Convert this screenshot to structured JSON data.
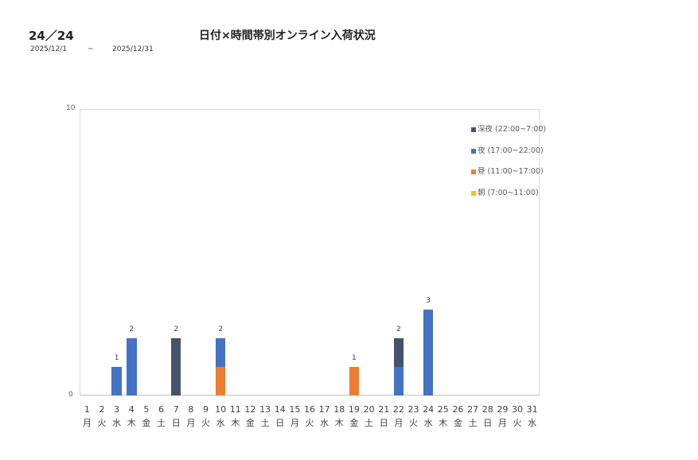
{
  "header": {
    "page_count": "24／24",
    "title": "日付×時間帯別オンライン入荷状況",
    "date_from": "2025/12/1",
    "date_sep": "~",
    "date_to": "2025/12/31"
  },
  "chart_data": {
    "type": "bar",
    "stacked": true,
    "title": "日付×時間帯別オンライン入荷状況",
    "xlabel": "",
    "ylabel": "",
    "ylim": [
      0,
      10
    ],
    "yticks": [
      "0",
      "10"
    ],
    "grid": false,
    "legend_position": "right-top",
    "categories": [
      "1",
      "2",
      "3",
      "4",
      "5",
      "6",
      "7",
      "8",
      "9",
      "10",
      "11",
      "12",
      "13",
      "14",
      "15",
      "16",
      "17",
      "18",
      "19",
      "20",
      "21",
      "22",
      "23",
      "24",
      "25",
      "26",
      "27",
      "28",
      "29",
      "30",
      "31"
    ],
    "weekdays": [
      "月",
      "火",
      "水",
      "木",
      "金",
      "土",
      "日",
      "月",
      "火",
      "水",
      "木",
      "金",
      "土",
      "日",
      "月",
      "火",
      "水",
      "木",
      "金",
      "土",
      "日",
      "月",
      "火",
      "水",
      "木",
      "金",
      "土",
      "日",
      "月",
      "火",
      "水"
    ],
    "series": [
      {
        "name": "朝 (7:00~11:00)",
        "color": "#ffc000",
        "values": [
          0,
          0,
          0,
          0,
          0,
          0,
          0,
          0,
          0,
          0,
          0,
          0,
          0,
          0,
          0,
          0,
          0,
          0,
          0,
          0,
          0,
          0,
          0,
          0,
          0,
          0,
          0,
          0,
          0,
          0,
          0
        ]
      },
      {
        "name": "昼 (11:00~17:00)",
        "color": "#ed7d31",
        "values": [
          0,
          0,
          0,
          0,
          0,
          0,
          0,
          0,
          0,
          1,
          0,
          0,
          0,
          0,
          0,
          0,
          0,
          0,
          1,
          0,
          0,
          0,
          0,
          0,
          0,
          0,
          0,
          0,
          0,
          0,
          0
        ]
      },
      {
        "name": "夜 (17:00~22:00)",
        "color": "#4472c4",
        "values": [
          0,
          0,
          1,
          2,
          0,
          0,
          0,
          0,
          0,
          1,
          0,
          0,
          0,
          0,
          0,
          0,
          0,
          0,
          0,
          0,
          0,
          1,
          0,
          3,
          0,
          0,
          0,
          0,
          0,
          0,
          0
        ]
      },
      {
        "name": "深夜 (22:00~7:00)",
        "color": "#44546a",
        "values": [
          0,
          0,
          0,
          0,
          0,
          0,
          2,
          0,
          0,
          0,
          0,
          0,
          0,
          0,
          0,
          0,
          0,
          0,
          0,
          0,
          0,
          1,
          0,
          0,
          0,
          0,
          0,
          0,
          0,
          0,
          0
        ]
      }
    ],
    "totals": [
      0,
      0,
      1,
      2,
      0,
      0,
      2,
      0,
      0,
      2,
      0,
      0,
      0,
      0,
      0,
      0,
      0,
      0,
      1,
      0,
      0,
      2,
      0,
      3,
      0,
      0,
      0,
      0,
      0,
      0,
      0
    ]
  },
  "legend": [
    {
      "label": "深夜 (22:00~7:00)",
      "color": "#44546a"
    },
    {
      "label": "夜 (17:00~22:00)",
      "color": "#4472c4"
    },
    {
      "label": "昼 (11:00~17:00)",
      "color": "#ed7d31"
    },
    {
      "label": "朝 (7:00~11:00)",
      "color": "#ffc000"
    }
  ]
}
